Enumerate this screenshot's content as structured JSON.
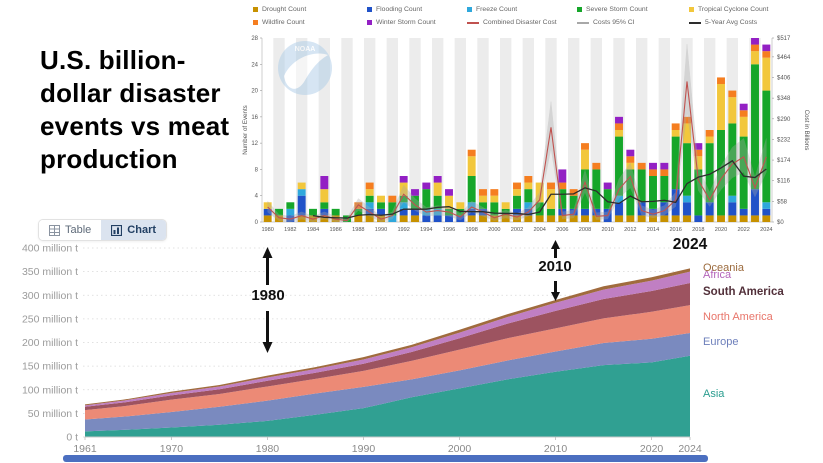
{
  "title": {
    "lines": [
      "U.S. billion-",
      "dollar disaster",
      "events vs meat",
      "production"
    ]
  },
  "toggle": {
    "table_label": "Table",
    "chart_label": "Chart"
  },
  "annotations": {
    "label_1980": "1980",
    "label_2010": "2010",
    "label_2024": "2024"
  },
  "noaa_watermark": "NOAA",
  "colors": {
    "accent_blue": "#4b6fc0",
    "toggle_active_bg": "#dbe3ef",
    "toggle_active_text": "#223f63",
    "stripe": "#ececec"
  },
  "chart_data": [
    {
      "id": "billion-dollar-disasters",
      "type": "bar",
      "ylabel_left": "Number of Events",
      "ylabel_right": "Cost in Billions",
      "x_start": 1980,
      "x_end": 2024,
      "x_tick_step": 2,
      "ylim_left": [
        0,
        28
      ],
      "left_ticks": [
        0,
        4,
        8,
        12,
        16,
        20,
        24,
        28
      ],
      "cost_max": 517,
      "right_ticks": [
        0,
        58,
        116,
        174,
        232,
        290,
        348,
        406,
        464,
        517
      ],
      "right_tick_labels": [
        "$0",
        "$58",
        "$116",
        "$174",
        "$232",
        "$290",
        "$348",
        "$406",
        "$464",
        "$517"
      ],
      "series": [
        {
          "name": "Drought Count",
          "color": "#c79100",
          "values": [
            1,
            1,
            0,
            1,
            1,
            1,
            1,
            0,
            1,
            1,
            1,
            0,
            1,
            1,
            0,
            0,
            0,
            0,
            1,
            1,
            1,
            1,
            1,
            1,
            1,
            1,
            1,
            1,
            1,
            1,
            0,
            1,
            1,
            1,
            1,
            1,
            1,
            1,
            0,
            1,
            1,
            1,
            1,
            1,
            1
          ]
        },
        {
          "name": "Flooding Count",
          "color": "#2052c8",
          "values": [
            1,
            0,
            1,
            3,
            0,
            1,
            0,
            0,
            0,
            1,
            1,
            0,
            1,
            1,
            1,
            1,
            1,
            1,
            1,
            1,
            0,
            0,
            1,
            1,
            0,
            0,
            1,
            1,
            1,
            1,
            2,
            2,
            0,
            2,
            1,
            2,
            4,
            2,
            1,
            2,
            0,
            2,
            1,
            4,
            1
          ]
        },
        {
          "name": "Freeze Count",
          "color": "#2fa8dc",
          "values": [
            0,
            0,
            1,
            1,
            0,
            0,
            0,
            0,
            0,
            1,
            0,
            1,
            1,
            0,
            1,
            1,
            0,
            0,
            1,
            0,
            0,
            0,
            0,
            1,
            0,
            0,
            0,
            0,
            0,
            0,
            0,
            1,
            0,
            0,
            0,
            0,
            0,
            1,
            0,
            0,
            0,
            1,
            0,
            0,
            1
          ]
        },
        {
          "name": "Severe Storm Count",
          "color": "#16a62a",
          "values": [
            0,
            1,
            1,
            0,
            1,
            1,
            1,
            1,
            1,
            1,
            1,
            2,
            1,
            2,
            3,
            2,
            1,
            1,
            4,
            1,
            2,
            1,
            2,
            2,
            2,
            1,
            3,
            2,
            6,
            6,
            3,
            9,
            7,
            5,
            5,
            4,
            8,
            8,
            7,
            9,
            13,
            11,
            11,
            19,
            17
          ]
        },
        {
          "name": "Tropical Cyclone Count",
          "color": "#f2c73c",
          "values": [
            1,
            0,
            0,
            1,
            0,
            2,
            0,
            0,
            0,
            1,
            1,
            0,
            2,
            0,
            0,
            2,
            2,
            1,
            3,
            1,
            1,
            1,
            1,
            1,
            3,
            3,
            0,
            0,
            3,
            0,
            0,
            1,
            1,
            0,
            0,
            0,
            1,
            3,
            2,
            1,
            7,
            4,
            3,
            2,
            5
          ]
        },
        {
          "name": "Wildfire Count",
          "color": "#f57e20",
          "values": [
            0,
            0,
            0,
            0,
            0,
            0,
            0,
            0,
            1,
            1,
            0,
            1,
            0,
            0,
            0,
            0,
            0,
            0,
            1,
            1,
            1,
            0,
            1,
            1,
            0,
            1,
            1,
            1,
            1,
            1,
            0,
            1,
            1,
            1,
            1,
            1,
            1,
            1,
            1,
            1,
            1,
            1,
            1,
            1,
            1
          ]
        },
        {
          "name": "Winter Storm Count",
          "color": "#9320c4",
          "values": [
            0,
            0,
            0,
            0,
            0,
            2,
            0,
            0,
            0,
            0,
            0,
            0,
            1,
            1,
            1,
            1,
            1,
            0,
            0,
            0,
            0,
            0,
            0,
            0,
            0,
            0,
            2,
            0,
            0,
            0,
            1,
            1,
            1,
            0,
            1,
            1,
            0,
            0,
            1,
            0,
            0,
            0,
            1,
            1,
            1
          ]
        }
      ],
      "lines": [
        {
          "name": "Combined Disaster Cost",
          "color": "#c0524f",
          "values": [
            42,
            12,
            8,
            18,
            8,
            18,
            8,
            4,
            48,
            28,
            8,
            18,
            78,
            48,
            28,
            32,
            28,
            14,
            42,
            28,
            12,
            22,
            14,
            28,
            62,
            266,
            18,
            22,
            112,
            16,
            18,
            92,
            128,
            32,
            22,
            32,
            62,
            395,
            118,
            62,
            121,
            163,
            183,
            96,
            183
          ]
        },
        {
          "name": "Costs 95% CI",
          "color": "#a8a8a8"
        },
        {
          "name": "5-Year Avg Costs",
          "color": "#2d2d2d",
          "start_year": 1984,
          "values": [
            18,
            13,
            12,
            11,
            19,
            21,
            19,
            22,
            36,
            36,
            36,
            41,
            43,
            30,
            29,
            29,
            25,
            24,
            24,
            21,
            28,
            78,
            78,
            79,
            96,
            87,
            57,
            52,
            73,
            57,
            58,
            61,
            55,
            108,
            126,
            134,
            152,
            172,
            129,
            125,
            149
          ]
        }
      ],
      "legend_position": "top",
      "grid": "vertical-stripes"
    },
    {
      "id": "world-meat-production-by-region",
      "type": "area",
      "unit": "million t",
      "x": [
        1961,
        1965,
        1970,
        1975,
        1980,
        1985,
        1990,
        1995,
        2000,
        2005,
        2010,
        2015,
        2020,
        2024
      ],
      "x_ticks": [
        1961,
        1970,
        1980,
        1990,
        2000,
        2010,
        2020,
        2024
      ],
      "ylim": [
        0,
        400
      ],
      "y_ticks": [
        0,
        50,
        100,
        150,
        200,
        250,
        300,
        350,
        400
      ],
      "y_tick_labels": [
        "0 t",
        "50 million t",
        "100 million t",
        "150 million t",
        "200 million t",
        "250 million t",
        "300 million t",
        "350 million t",
        "400 million t"
      ],
      "grid": "dashed-horizontal",
      "series": [
        {
          "name": "Asia",
          "color": "#30a092",
          "label_color": "#2a9d8f",
          "label_bold": false,
          "values": [
            12,
            15,
            20,
            26,
            34,
            47,
            61,
            84,
            103,
            122,
            138,
            152,
            158,
            172
          ]
        },
        {
          "name": "Europe",
          "color": "#7a8abf",
          "label_color": "#6d7fbb",
          "label_bold": false,
          "values": [
            25,
            28,
            33,
            38,
            43,
            45,
            45,
            38,
            38,
            40,
            43,
            47,
            50,
            48
          ]
        },
        {
          "name": "North America",
          "color": "#ec8a76",
          "label_color": "#e8756a",
          "label_bold": false,
          "values": [
            20,
            22,
            26,
            27,
            30,
            31,
            34,
            39,
            44,
            47,
            49,
            52,
            57,
            59
          ]
        },
        {
          "name": "South America",
          "color": "#9d5360",
          "label_color": "#52303a",
          "label_bold": true,
          "values": [
            7,
            8,
            9,
            10,
            12,
            13,
            15,
            19,
            24,
            31,
            37,
            41,
            44,
            47
          ]
        },
        {
          "name": "Africa",
          "color": "#c07fc3",
          "label_color": "#b465ba",
          "label_bold": false,
          "values": [
            3,
            4,
            5,
            6,
            7,
            8,
            9,
            10,
            12,
            14,
            17,
            20,
            22,
            24
          ]
        },
        {
          "name": "Oceania",
          "color": "#a06b3e",
          "label_color": "#9c6b3e",
          "label_bold": false,
          "values": [
            2,
            2,
            3,
            3,
            4,
            4,
            5,
            5,
            6,
            6,
            6,
            7,
            7,
            7
          ]
        }
      ]
    }
  ]
}
